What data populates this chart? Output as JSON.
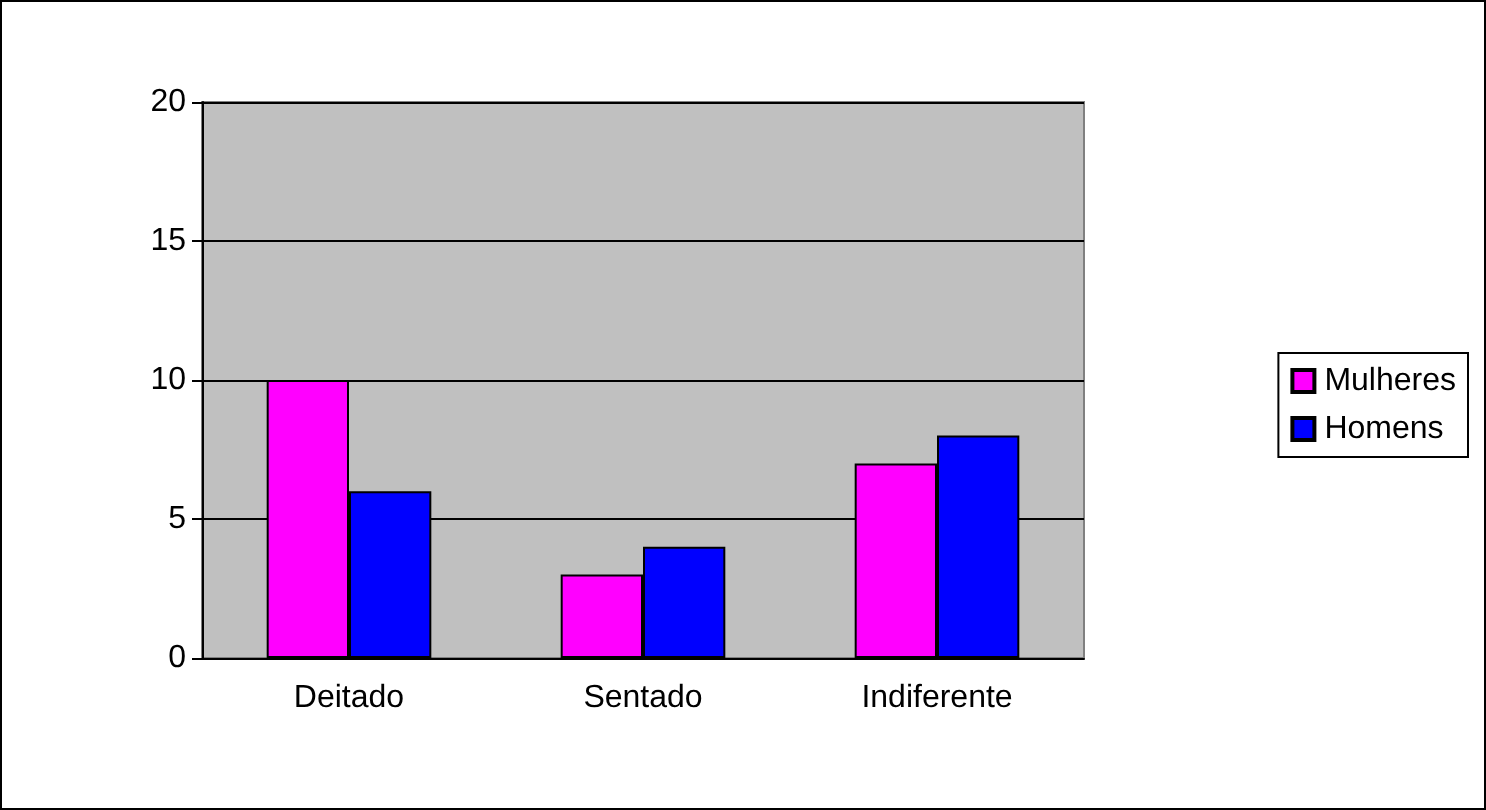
{
  "chart_data": {
    "type": "bar",
    "categories": [
      "Deitado",
      "Sentado",
      "Indiferente"
    ],
    "series": [
      {
        "name": "Mulheres",
        "color": "#ff00ff",
        "values": [
          10,
          3,
          7
        ]
      },
      {
        "name": "Homens",
        "color": "#0000ff",
        "values": [
          6,
          4,
          8
        ]
      }
    ],
    "ylim": [
      0,
      20
    ],
    "yticks": [
      0,
      5,
      10,
      15,
      20
    ],
    "grid": "y",
    "legend": "right"
  }
}
